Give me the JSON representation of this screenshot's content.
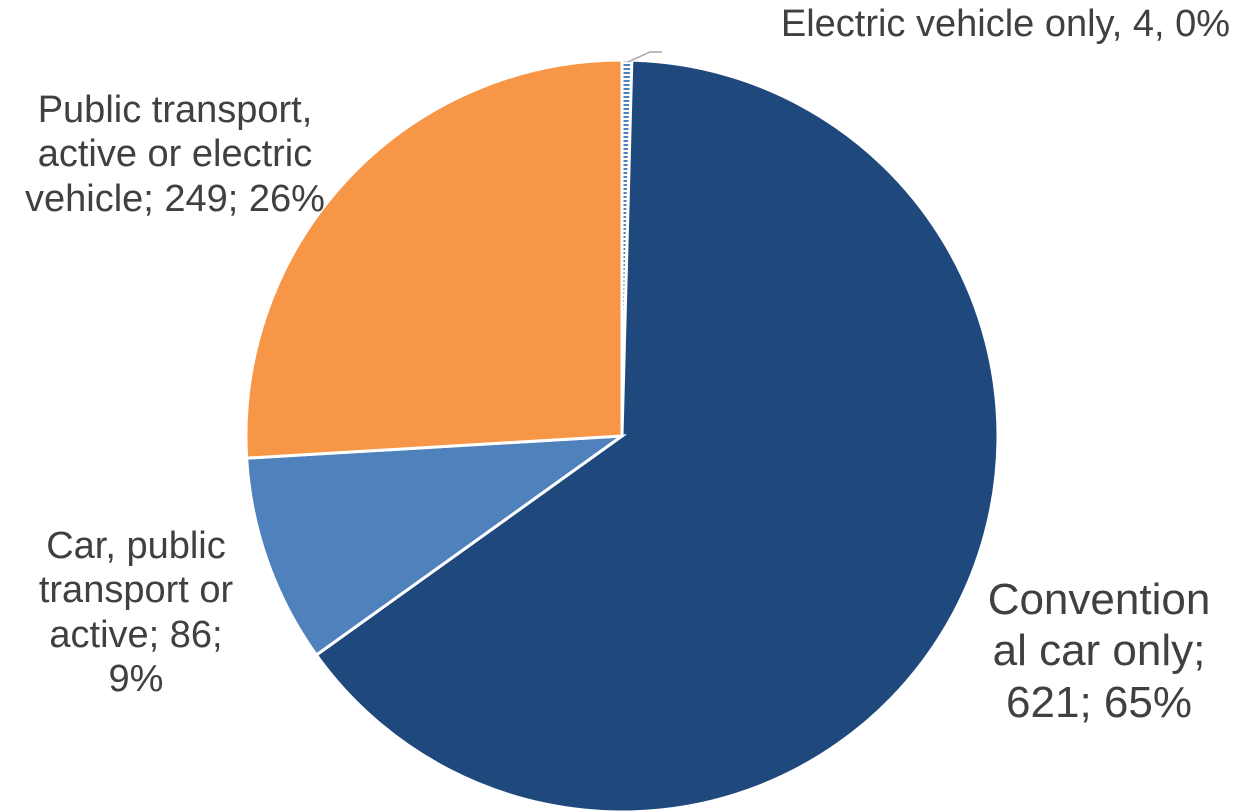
{
  "chart_data": {
    "type": "pie",
    "title": "",
    "slices": [
      {
        "label": "Electric vehicle only",
        "value": 4,
        "percent": 0,
        "color": "#5b8ccd",
        "pattern": "striped",
        "data_label": "Electric vehicle only, 4, 0%"
      },
      {
        "label": "Conventional car only",
        "value": 621,
        "percent": 65,
        "color": "#1f497d",
        "data_label": "Conventional car only; 621; 65%"
      },
      {
        "label": "Car, public transport or active",
        "value": 86,
        "percent": 9,
        "color": "#4f81bd",
        "data_label": "Car, public transport or active; 86; 9%"
      },
      {
        "label": "Public transport, active or electric vehicle",
        "value": 249,
        "percent": 26,
        "color": "#f79646",
        "data_label": "Public transport, active or electric vehicle; 249; 26%"
      }
    ],
    "start_angle": "12 o'clock",
    "direction": "clockwise",
    "legend": "none"
  }
}
